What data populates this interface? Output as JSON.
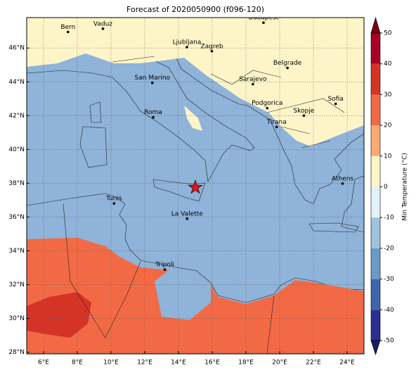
{
  "title": "Forecast of 2020050900 (f096-120)",
  "map": {
    "lonlim": [
      5,
      25
    ],
    "latlim": [
      27.9,
      47.8
    ],
    "lon_ticks": [
      {
        "value": 6,
        "label": "6°E"
      },
      {
        "value": 8,
        "label": "8°E"
      },
      {
        "value": 10,
        "label": "10°E"
      },
      {
        "value": 12,
        "label": "12°E"
      },
      {
        "value": 14,
        "label": "14°E"
      },
      {
        "value": 16,
        "label": "16°E"
      },
      {
        "value": 18,
        "label": "18°E"
      },
      {
        "value": 20,
        "label": "20°E"
      },
      {
        "value": 22,
        "label": "22°E"
      },
      {
        "value": 24,
        "label": "24°E"
      }
    ],
    "lat_ticks": [
      {
        "value": 28,
        "label": "28°N"
      },
      {
        "value": 30,
        "label": "30°N"
      },
      {
        "value": 32,
        "label": "32°N"
      },
      {
        "value": 34,
        "label": "34°N"
      },
      {
        "value": 36,
        "label": "36°N"
      },
      {
        "value": 38,
        "label": "38°N"
      },
      {
        "value": 40,
        "label": "40°N"
      },
      {
        "value": 42,
        "label": "42°N"
      },
      {
        "value": 44,
        "label": "44°N"
      },
      {
        "value": 46,
        "label": "46°N"
      }
    ],
    "cities": [
      {
        "name": "Bern",
        "lon": 7.45,
        "lat": 46.95
      },
      {
        "name": "Vaduz",
        "lon": 9.52,
        "lat": 47.14
      },
      {
        "name": "Budapest",
        "lon": 19.04,
        "lat": 47.5
      },
      {
        "name": "Ljubljana",
        "lon": 14.5,
        "lat": 46.05
      },
      {
        "name": "Zagreb",
        "lon": 15.98,
        "lat": 45.81
      },
      {
        "name": "San Marino",
        "lon": 12.45,
        "lat": 43.94
      },
      {
        "name": "Belgrade",
        "lon": 20.46,
        "lat": 44.82
      },
      {
        "name": "Sarajevo",
        "lon": 18.41,
        "lat": 43.86
      },
      {
        "name": "Roma",
        "lon": 12.5,
        "lat": 41.9
      },
      {
        "name": "Podgorica",
        "lon": 19.26,
        "lat": 42.44
      },
      {
        "name": "Skopje",
        "lon": 21.43,
        "lat": 42.0
      },
      {
        "name": "Sofia",
        "lon": 23.32,
        "lat": 42.7
      },
      {
        "name": "Tirana",
        "lon": 19.82,
        "lat": 41.33
      },
      {
        "name": "Athens",
        "lon": 23.73,
        "lat": 37.98
      },
      {
        "name": "Tunis",
        "lon": 10.18,
        "lat": 36.8
      },
      {
        "name": "La Valette",
        "lon": 14.51,
        "lat": 35.9
      },
      {
        "name": "Tripoli",
        "lon": 13.19,
        "lat": 32.89
      }
    ],
    "marker": {
      "lon": 15.0,
      "lat": 37.75,
      "color": "#e8141c"
    }
  },
  "colorbar": {
    "label": "Min Temperature (°C)",
    "ticks": [
      -50,
      -40,
      -30,
      -20,
      -10,
      0,
      10,
      20,
      30,
      40,
      50
    ],
    "colors": [
      "#2b2f8f",
      "#3f66ad",
      "#6b9ac9",
      "#9ec3de",
      "#e3f2f7",
      "#fdf5c8",
      "#fbaa73",
      "#f26a45",
      "#d63327",
      "#a80026"
    ],
    "under_color": "#1a1a66",
    "over_color": "#780016"
  }
}
